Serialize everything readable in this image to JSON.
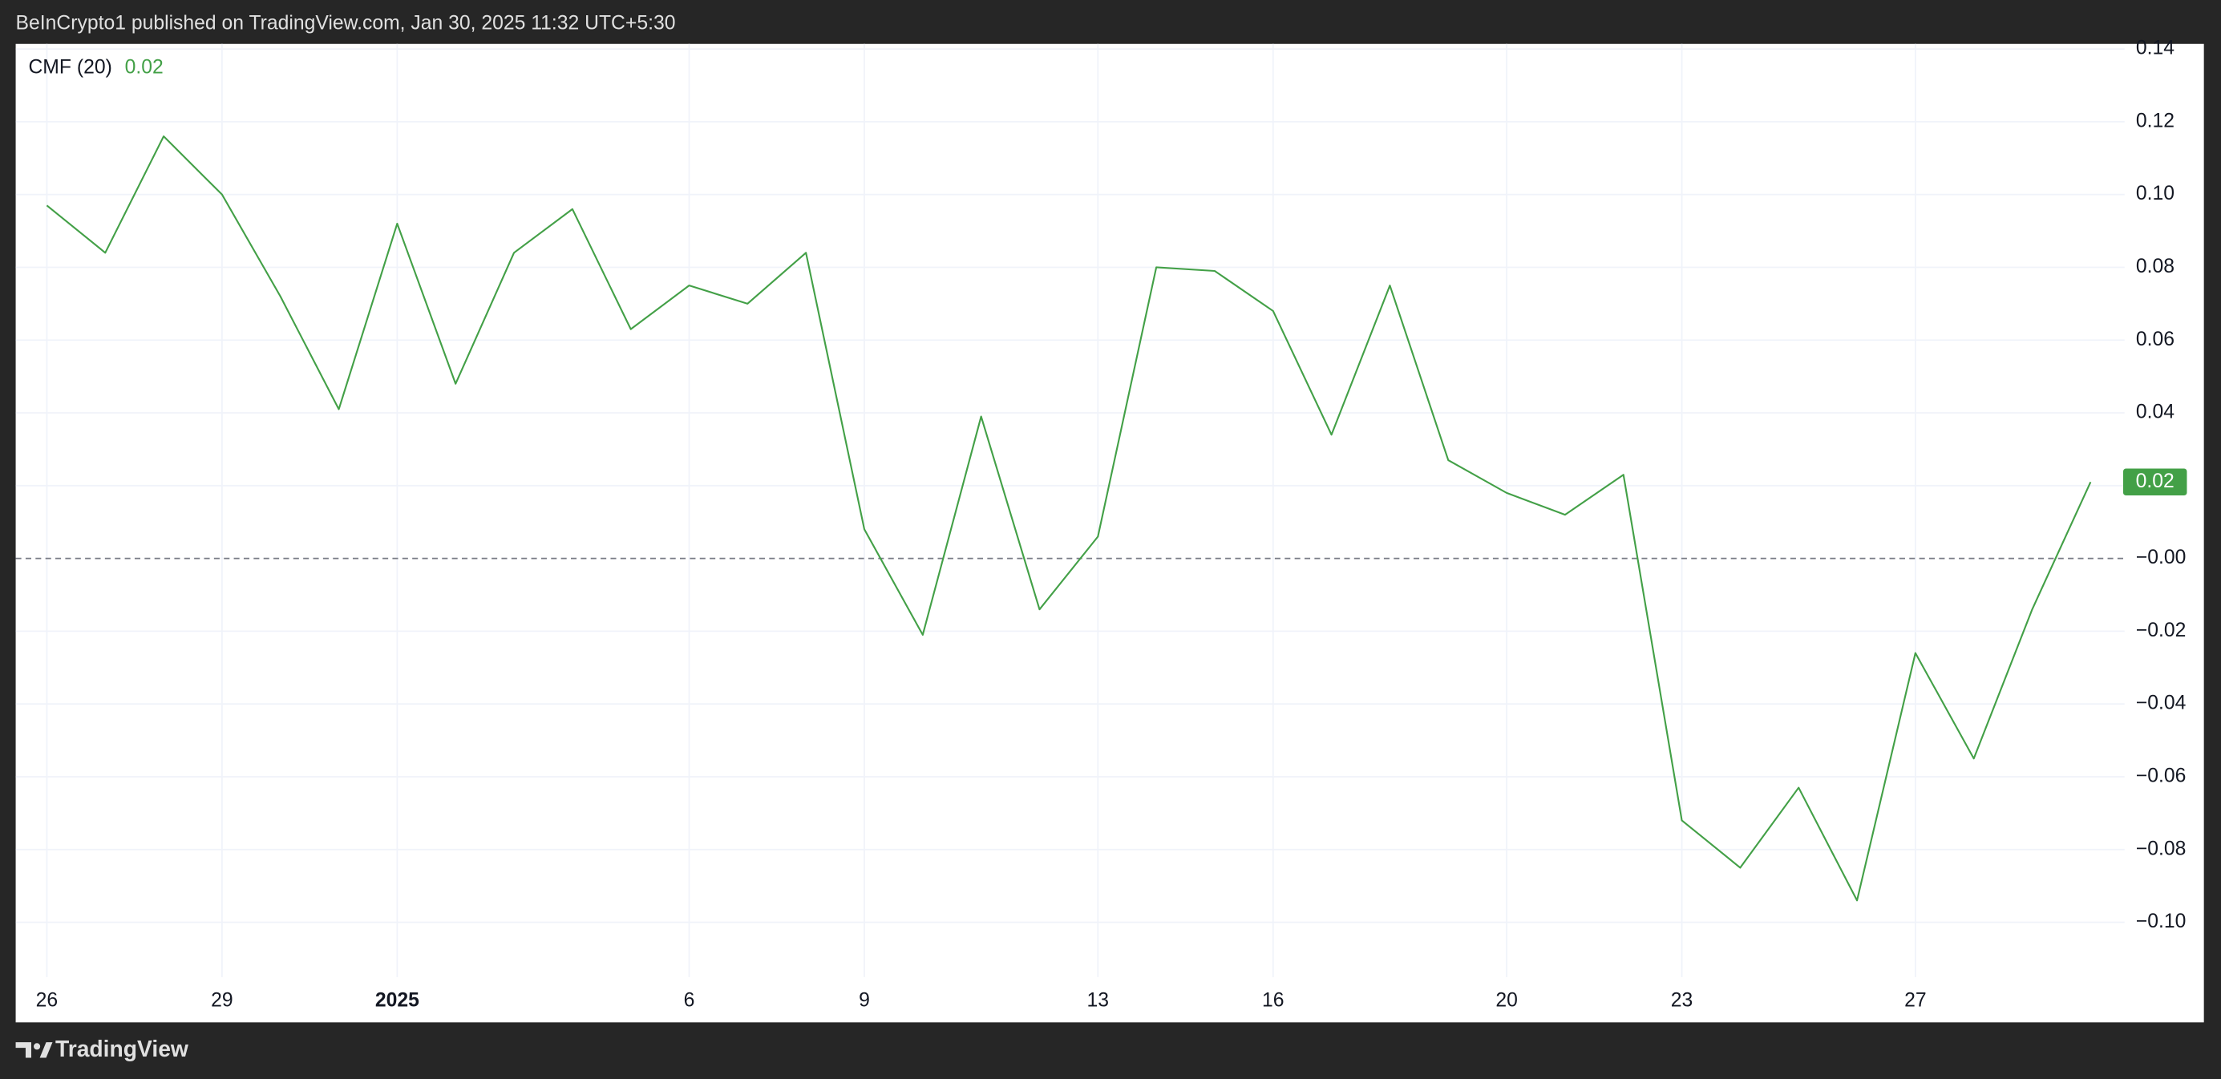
{
  "header": "BeInCrypto1 published on TradingView.com, Jan 30, 2025 11:32 UTC+5:30",
  "footer": "TradingView",
  "chart_data": {
    "type": "line",
    "categories": [
      "26",
      null,
      null,
      "29",
      null,
      null,
      "2025",
      null,
      null,
      null,
      null,
      "6",
      null,
      null,
      "9",
      null,
      null,
      null,
      "13",
      null,
      null,
      "16",
      null,
      null,
      null,
      "20",
      null,
      null,
      "23",
      null,
      null,
      null,
      "27",
      null,
      null,
      null
    ],
    "series": [
      {
        "name": "CMF (20)",
        "color": "#43a047",
        "values": [
          0.097,
          0.084,
          0.116,
          0.1,
          0.072,
          0.041,
          0.092,
          0.048,
          0.084,
          0.096,
          0.063,
          0.075,
          0.07,
          0.084,
          0.008,
          -0.021,
          0.039,
          -0.014,
          0.006,
          0.08,
          0.079,
          0.068,
          0.034,
          0.075,
          0.027,
          0.018,
          0.012,
          0.023,
          -0.072,
          -0.085,
          -0.063,
          -0.094,
          -0.026,
          -0.055,
          -0.014,
          0.021
        ],
        "value_labels": [
          null,
          null,
          null,
          null,
          null,
          null,
          null,
          null,
          null,
          null,
          null,
          null,
          null,
          null,
          null,
          null,
          null,
          null,
          null,
          null,
          null,
          null,
          null,
          null,
          null,
          null,
          null,
          null,
          null,
          null,
          null,
          null,
          null,
          null,
          null,
          "0.02"
        ]
      }
    ],
    "ylim": [
      -0.1275,
      0.1414
    ],
    "yticks": [
      0.14,
      0.12,
      {
        "value": 0.1,
        "label": "0.10"
      },
      0.08,
      0.06,
      0.04,
      0.02,
      {
        "value": 0,
        "label": "−0.00"
      },
      {
        "value": -0.02,
        "label": "−0.02"
      },
      {
        "value": -0.04,
        "label": "−0.04"
      },
      {
        "value": -0.06,
        "label": "−0.06"
      },
      {
        "value": -0.08,
        "label": "−0.08"
      },
      {
        "value": -0.1,
        "label": "−0.10"
      }
    ],
    "grid": true,
    "zero_line": "dashed"
  }
}
